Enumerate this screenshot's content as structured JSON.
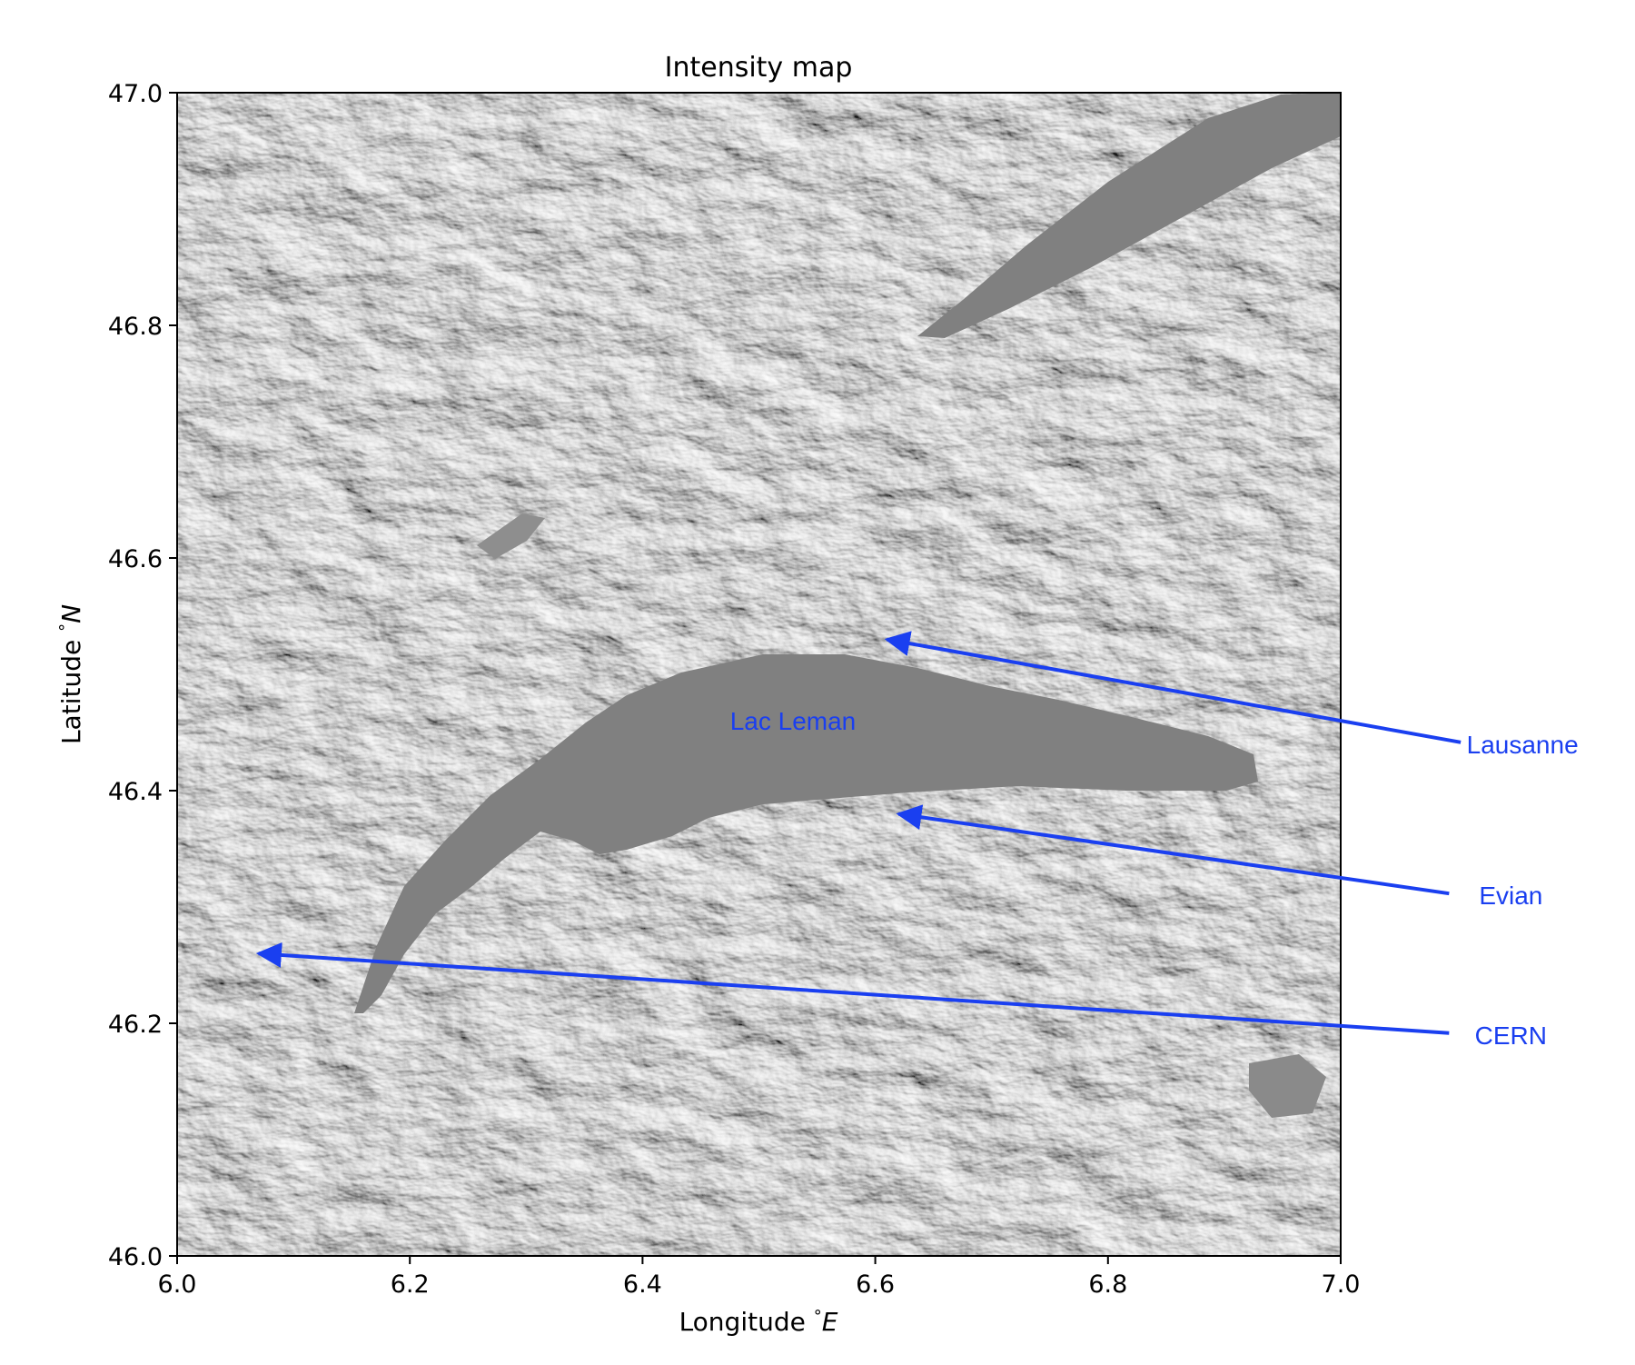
{
  "title": "Intensity map",
  "xlabel": "Longitude $^{\\circ}E$",
  "ylabel": "Latitude $^{\\circ}N$",
  "xlabel_text": "Longitude ",
  "xlabel_unit": "E",
  "ylabel_text": "Latitude ",
  "ylabel_unit": "N",
  "degree_symbol": "°",
  "xlim": [
    6.0,
    7.0
  ],
  "ylim": [
    46.0,
    47.0
  ],
  "xticks": [
    "6.0",
    "6.2",
    "6.4",
    "6.6",
    "6.8",
    "7.0"
  ],
  "yticks": [
    "46.0",
    "46.2",
    "46.4",
    "46.6",
    "46.8",
    "47.0"
  ],
  "colors": {
    "annotation": "#1a3ff0",
    "lake": "#808080",
    "terrain_light": "#f2f2f2",
    "terrain_dark": "#1a1a1a"
  },
  "chart_data": {
    "type": "heatmap",
    "colormap": "gray",
    "x_range": [
      6.0,
      7.0
    ],
    "y_range": [
      46.0,
      47.0
    ],
    "grid": false,
    "lake_label": {
      "text": "Lac Leman",
      "lon": 6.53,
      "lat": 46.45
    },
    "annotations": [
      {
        "text": "Lausanne",
        "target_lon": 6.61,
        "target_lat": 46.53,
        "text_lon": 7.15,
        "text_lat": 46.44
      },
      {
        "text": "Evian",
        "target_lon": 6.62,
        "target_lat": 46.38,
        "text_lon": 7.14,
        "text_lat": 46.31
      },
      {
        "text": "CERN",
        "target_lon": 6.07,
        "target_lat": 46.26,
        "text_lon": 7.14,
        "text_lat": 46.19
      }
    ]
  }
}
